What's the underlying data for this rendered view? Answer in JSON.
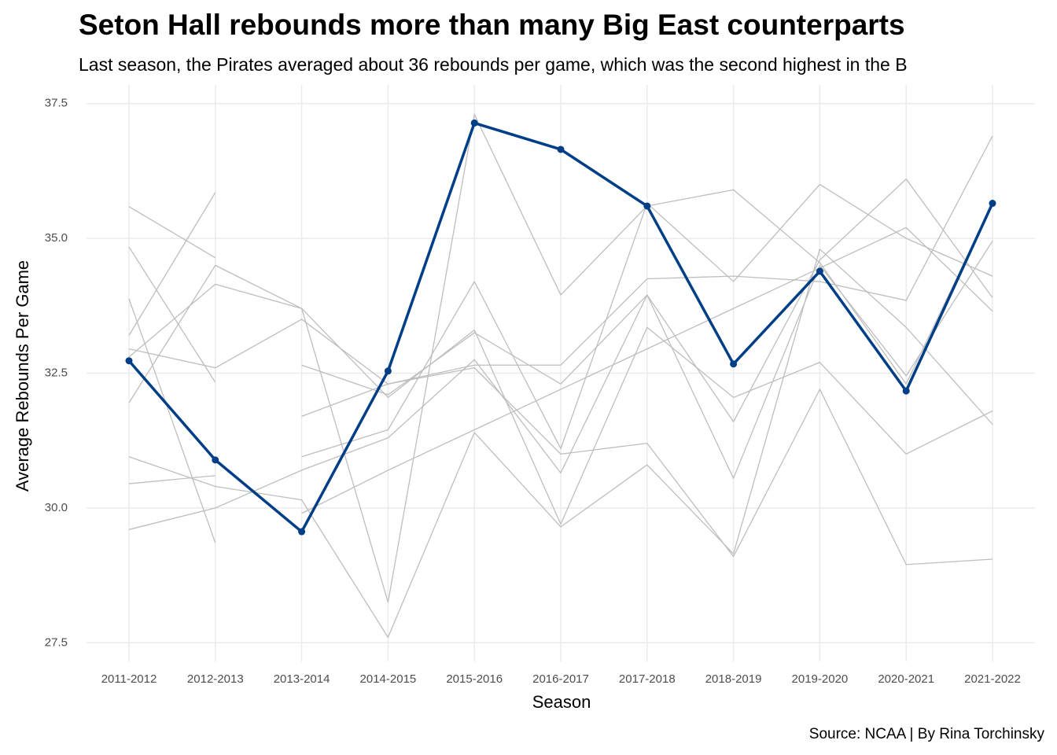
{
  "chart_data": {
    "type": "line",
    "title": "Seton Hall rebounds more than many Big East counterparts",
    "subtitle": "Last season, the Pirates averaged about 36 rebounds per game, which was the second highest in the B",
    "x_label": "Season",
    "y_label": "Average Rebounds Per Game",
    "source": "Source: NCAA | By Rina Torchinsky",
    "categories": [
      "2011-2012",
      "2012-2013",
      "2013-2014",
      "2014-2015",
      "2015-2016",
      "2016-2017",
      "2017-2018",
      "2018-2019",
      "2019-2020",
      "2020-2021",
      "2021-2022"
    ],
    "ylim": [
      27.3,
      37.7
    ],
    "yticks": [
      27.5,
      {
        "value": 30,
        "label": "30.0"
      },
      32.5,
      {
        "value": 35,
        "label": "35.0"
      },
      37.5
    ],
    "grid": true,
    "series": [
      {
        "color": "#bebebe",
        "values": [
          35.59,
          34.64,
          null,
          null,
          null,
          null,
          null,
          null,
          null,
          null,
          null
        ]
      },
      {
        "color": "#bebebe",
        "values": [
          34.84,
          32.33,
          null,
          null,
          null,
          null,
          null,
          null,
          null,
          null,
          null
        ]
      },
      {
        "color": "#bebebe",
        "values": [
          33.88,
          29.35,
          null,
          null,
          null,
          null,
          null,
          null,
          null,
          null,
          null
        ]
      },
      {
        "color": "#bebebe",
        "values": [
          33.2,
          35.85,
          null,
          null,
          null,
          null,
          null,
          null,
          null,
          null,
          null
        ]
      },
      {
        "color": "#bebebe",
        "values": [
          31.95,
          34.5,
          33.7,
          32.05,
          33.3,
          29.7,
          33.35,
          32.05,
          32.7,
          31.0,
          31.8
        ]
      },
      {
        "color": "#bebebe",
        "values": [
          32.95,
          32.6,
          33.5,
          32.3,
          32.6,
          31.0,
          31.2,
          29.1,
          32.2,
          28.95,
          29.05
        ]
      },
      {
        "color": "#bebebe",
        "values": [
          30.95,
          30.4,
          30.15,
          27.6,
          31.4,
          29.65,
          30.8,
          29.15,
          34.8,
          33.35,
          31.55
        ]
      },
      {
        "color": "#bebebe",
        "values": [
          29.6,
          30.0,
          30.7,
          31.3,
          32.75,
          30.65,
          33.95,
          30.55,
          34.5,
          32.45,
          34.95
        ]
      },
      {
        "color": "#bebebe",
        "values": [
          30.45,
          30.6,
          null,
          null,
          null,
          null,
          null,
          null,
          null,
          null,
          null
        ]
      },
      {
        "color": "#bebebe",
        "values": [
          32.8,
          34.15,
          33.7,
          28.25,
          37.3,
          33.95,
          35.6,
          35.9,
          34.55,
          32.3,
          35.65
        ]
      },
      {
        "color": "#bebebe",
        "values": [
          null,
          null,
          31.7,
          32.3,
          32.65,
          32.65,
          34.25,
          34.3,
          34.2,
          33.85,
          36.9
        ]
      },
      {
        "color": "#bebebe",
        "values": [
          null,
          null,
          32.65,
          32.1,
          33.25,
          32.3,
          33.95,
          31.6,
          34.6,
          36.1,
          33.9
        ]
      },
      {
        "color": "#bebebe",
        "values": [
          null,
          null,
          30.95,
          31.45,
          34.2,
          31.1,
          35.65,
          34.2,
          36.0,
          35.0,
          34.3
        ]
      },
      {
        "color": "#bebebe",
        "values": [
          null,
          null,
          29.9,
          30.7,
          31.45,
          32.2,
          32.95,
          33.7,
          34.45,
          35.2,
          33.65
        ]
      },
      {
        "color": "#003f87",
        "values": [
          32.73,
          30.89,
          29.56,
          32.54,
          37.14,
          36.65,
          35.6,
          32.67,
          34.39,
          32.17,
          35.65
        ]
      }
    ]
  }
}
